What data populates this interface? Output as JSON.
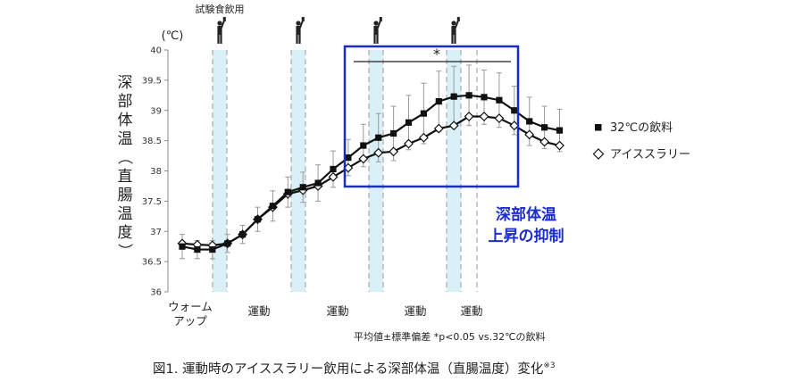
{
  "chart_data": {
    "type": "line",
    "title": "",
    "ylabel": "深部体温（直腸温度）",
    "yunit": "(℃)",
    "ylim": [
      36,
      40
    ],
    "yticks": [
      "36",
      "36.5",
      "37",
      "37.5",
      "38",
      "38.5",
      "39",
      "39.5",
      "40"
    ],
    "xticks": [
      0,
      1,
      2,
      3,
      4,
      5,
      6,
      7,
      8,
      9,
      10,
      11,
      12,
      13,
      14,
      15,
      16,
      17,
      18,
      19,
      20,
      21,
      22,
      23,
      24,
      25
    ],
    "grid": false,
    "legend_position": "right",
    "phase_labels": [
      "ウォーム\nアップ",
      "運動",
      "運動",
      "運動",
      "運動"
    ],
    "drink_label": "試験食飲用",
    "significance_mark": "*",
    "annotation": "深部体温\n上昇の抑制",
    "series": [
      {
        "name": "32℃の飲料",
        "marker": "filled-square",
        "values": [
          36.75,
          36.7,
          36.7,
          36.8,
          36.95,
          37.2,
          37.42,
          37.65,
          37.73,
          37.8,
          38.03,
          38.22,
          38.42,
          38.55,
          38.62,
          38.8,
          38.95,
          39.15,
          39.23,
          39.25,
          39.22,
          39.17,
          39.0,
          38.82,
          38.72,
          38.67
        ],
        "error": [
          0.2,
          0.15,
          0.15,
          0.15,
          0.15,
          0.2,
          0.25,
          0.25,
          0.25,
          0.3,
          0.3,
          0.3,
          0.35,
          0.4,
          0.45,
          0.45,
          0.5,
          0.5,
          0.5,
          0.5,
          0.45,
          0.45,
          0.4,
          0.4,
          0.35,
          0.35
        ]
      },
      {
        "name": "アイススラリー",
        "marker": "open-diamond",
        "values": [
          36.8,
          36.78,
          36.77,
          36.8,
          36.95,
          37.2,
          37.4,
          37.62,
          37.68,
          37.75,
          37.9,
          38.05,
          38.2,
          38.3,
          38.32,
          38.45,
          38.55,
          38.7,
          38.75,
          38.9,
          38.9,
          38.87,
          38.75,
          38.6,
          38.48,
          38.42
        ]
      }
    ]
  },
  "footnote": "平均値±標準偏差 *p<0.05 vs.32℃の飲料",
  "caption_main": "図1. 運動時のアイススラリー飲用による深部体温（直腸温度）変化",
  "caption_sup": "※3",
  "colors": {
    "line": "#111111",
    "error_bar": "#999999",
    "band": "#d9f0f8",
    "dash": "#aaaaaa",
    "highlight_box": "#1a2ccc",
    "annotation": "#1a2ccc"
  }
}
